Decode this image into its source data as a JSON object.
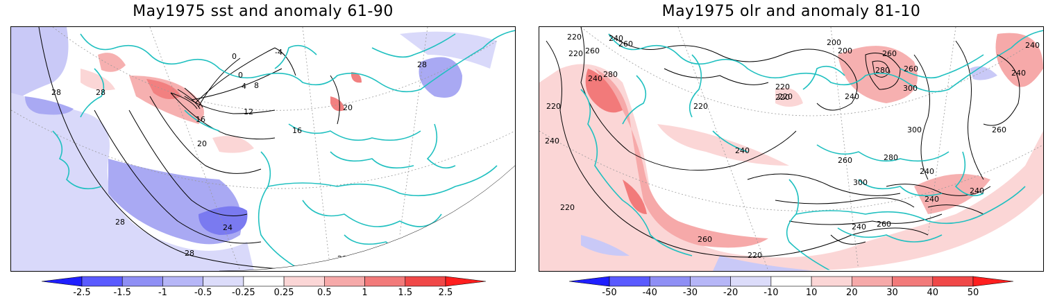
{
  "panels": [
    {
      "title": "May1975 sst and anomaly 61-90",
      "contour_labels": [
        "28",
        "28",
        "28",
        "28",
        "24",
        "20",
        "16",
        "12",
        "8",
        "4",
        "0",
        "0",
        "16",
        "-4",
        "20",
        "28",
        "28"
      ],
      "colorbar": {
        "ticks": [
          "-2.5",
          "-1.5",
          "-1",
          "-0.5",
          "-0.25",
          "0.25",
          "0.5",
          "1",
          "1.5",
          "2.5"
        ],
        "colors": [
          "#1f1fff",
          "#5a5aff",
          "#8f8ff5",
          "#b6b6f7",
          "#dcdcfa",
          "#ffffff",
          "#fbd6d6",
          "#f6a9a9",
          "#f27a7a",
          "#f04848",
          "#ff1f1f"
        ]
      }
    },
    {
      "title": "May1975 olr and anomaly 81-10",
      "contour_labels": [
        "260",
        "240",
        "220",
        "220",
        "260",
        "240",
        "220",
        "200",
        "200",
        "220",
        "240",
        "220",
        "280",
        "240",
        "300",
        "240",
        "260",
        "280",
        "240",
        "260",
        "300",
        "220",
        "240",
        "220",
        "260",
        "260",
        "240",
        "220",
        "220",
        "240",
        "260",
        "280",
        "240",
        "300",
        "260",
        "240"
      ],
      "colorbar": {
        "ticks": [
          "-50",
          "-40",
          "-30",
          "-20",
          "-10",
          "10",
          "20",
          "30",
          "40",
          "50"
        ],
        "colors": [
          "#1f1fff",
          "#5a5aff",
          "#8f8ff5",
          "#b6b6f7",
          "#dcdcfa",
          "#ffffff",
          "#fbd6d6",
          "#f6a9a9",
          "#f27a7a",
          "#f04848",
          "#ff1f1f"
        ]
      }
    }
  ],
  "colors": {
    "coastline": "#20c0c0",
    "contour": "#000000",
    "negative_fill": "#a9a9f5",
    "positive_fill": "#f6b0b0"
  }
}
